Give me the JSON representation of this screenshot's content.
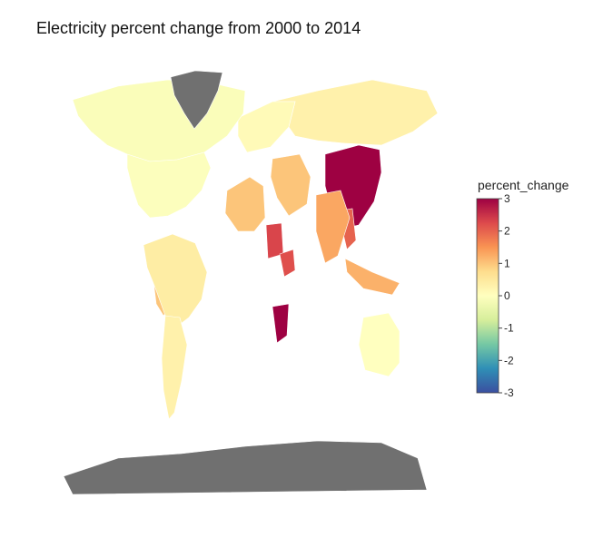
{
  "chart_data": {
    "type": "choropleth",
    "title": "Electricity percent change from 2000 to 2014",
    "colorbar": {
      "title": "percent_change",
      "range": [
        -3,
        3
      ],
      "ticks": [
        3,
        2,
        1,
        0,
        -1,
        -2,
        -3
      ],
      "colorscale": "Spectral",
      "stops": [
        "#3b4fa0",
        "#2f8fb6",
        "#75c8a4",
        "#d6ee9b",
        "#ffffbf",
        "#fedd8d",
        "#f99453",
        "#dd4a4c",
        "#9e0142"
      ],
      "no_data_color": "#707070"
    },
    "regions": [
      {
        "name": "China",
        "value": 3
      },
      {
        "name": "Mozambique",
        "value": 3
      },
      {
        "name": "Sudan",
        "value": 2.3
      },
      {
        "name": "Ethiopia",
        "value": 2.2
      },
      {
        "name": "Myanmar",
        "value": 2
      },
      {
        "name": "India",
        "value": 1.3
      },
      {
        "name": "Southeast Asia",
        "value": 1.2
      },
      {
        "name": "Middle East",
        "value": 1
      },
      {
        "name": "West Africa",
        "value": 1
      },
      {
        "name": "Peru",
        "value": 1
      },
      {
        "name": "Bolivia",
        "value": 0.8
      },
      {
        "name": "South America",
        "value": 0.4
      },
      {
        "name": "Argentina",
        "value": 0.3
      },
      {
        "name": "Russia",
        "value": 0.3
      },
      {
        "name": "Europe",
        "value": 0.1
      },
      {
        "name": "Canada",
        "value": -0.1
      },
      {
        "name": "United States",
        "value": -0.05
      },
      {
        "name": "Australia",
        "value": 0
      },
      {
        "name": "Greenland",
        "value": null
      },
      {
        "name": "Antarctica",
        "value": null
      }
    ]
  }
}
